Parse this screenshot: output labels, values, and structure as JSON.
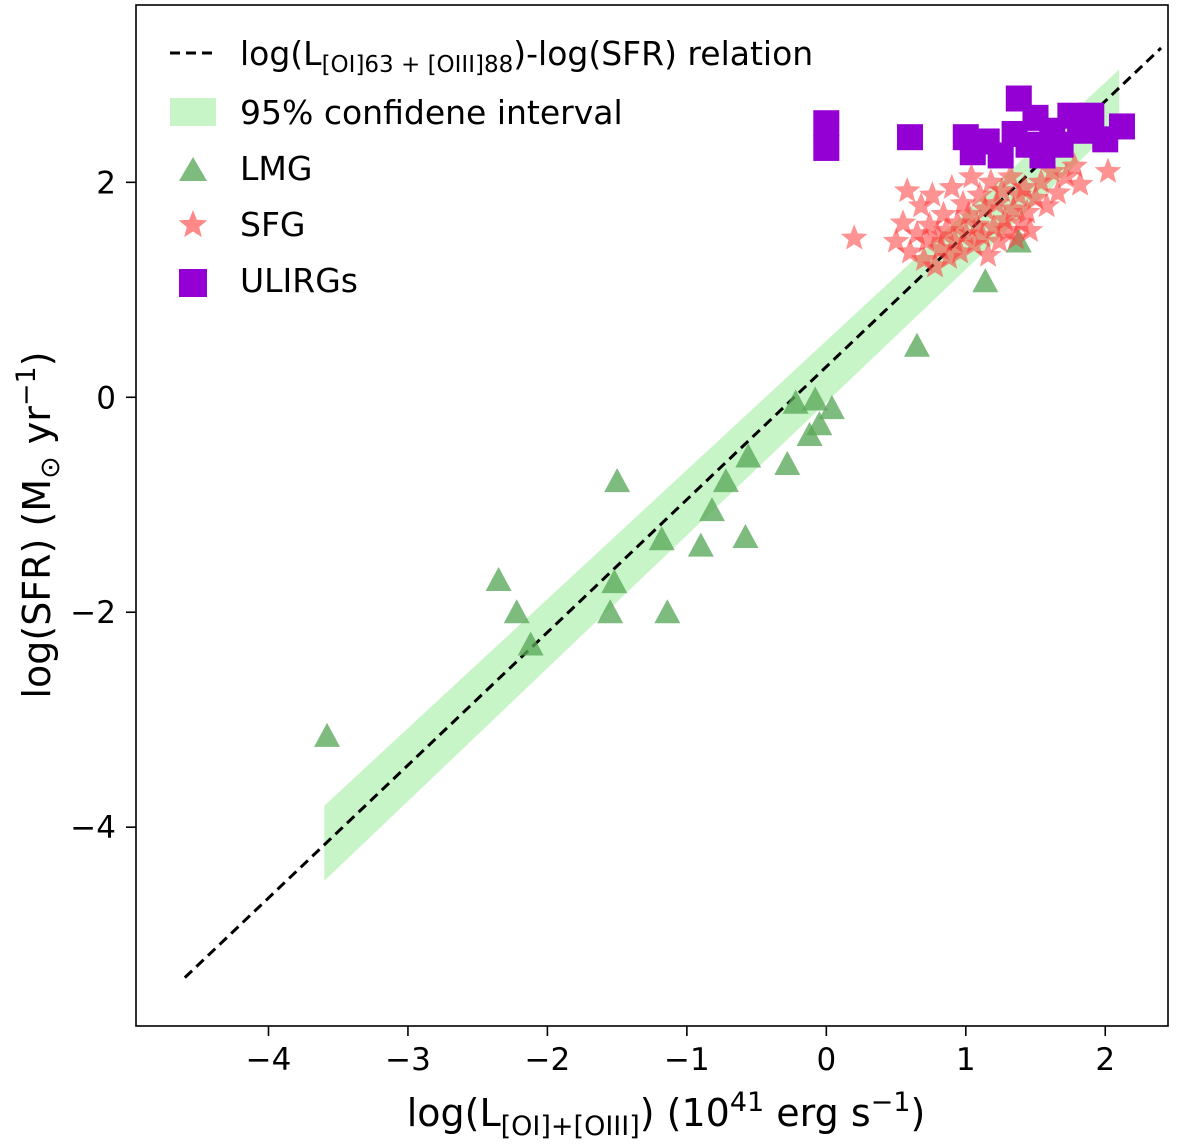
{
  "chart_data": {
    "type": "scatter",
    "title": "",
    "xlabel": {
      "main": "log(L",
      "sub": "[OI]+[OIII]",
      "rest": ") (10",
      "sup": "41",
      "units": " erg s",
      "units_sup": "−1",
      "close": ")"
    },
    "ylabel": {
      "main": "log(SFR) (M",
      "sub": "⊙",
      "units": " yr",
      "units_sup": "−1",
      "close": ")"
    },
    "xlim": [
      -4.95,
      2.45
    ],
    "ylim": [
      -5.85,
      3.65
    ],
    "xticks": [
      {
        "value": -4,
        "label": "−4"
      },
      {
        "value": -3,
        "label": "−3"
      },
      {
        "value": -2,
        "label": "−2"
      },
      {
        "value": -1,
        "label": "−1"
      },
      {
        "value": 0,
        "label": "0"
      },
      {
        "value": 1,
        "label": "1"
      },
      {
        "value": 2,
        "label": "2"
      }
    ],
    "yticks": [
      {
        "value": 2,
        "label": "2"
      },
      {
        "value": 0,
        "label": "0"
      },
      {
        "value": -2,
        "label": "−2"
      },
      {
        "value": -4,
        "label": "−4"
      }
    ],
    "grid": false,
    "legend_position": "top-left",
    "relation": {
      "legend_main": "log(L",
      "legend_sub": "[OI]63 + [OIII]88",
      "legend_rest": ")-log(SFR) relation",
      "x": [
        -4.6,
        2.4
      ],
      "y": [
        -5.4,
        3.25
      ],
      "color": "#000000"
    },
    "confidence_band": {
      "legend": "95% confidene interval",
      "x": [
        -3.6,
        2.1
      ],
      "upper": [
        -3.8,
        3.05
      ],
      "lower": [
        -4.5,
        2.55
      ],
      "color": "#c8f5c8"
    },
    "series": [
      {
        "name": "LMG",
        "marker": "triangle",
        "color": "#5aa85a",
        "points": [
          {
            "x": -3.58,
            "y": -3.15
          },
          {
            "x": -2.35,
            "y": -1.7
          },
          {
            "x": -2.22,
            "y": -2.0
          },
          {
            "x": -2.12,
            "y": -2.3
          },
          {
            "x": -1.55,
            "y": -2.0
          },
          {
            "x": -1.52,
            "y": -1.72
          },
          {
            "x": -1.5,
            "y": -0.78
          },
          {
            "x": -1.14,
            "y": -2.0
          },
          {
            "x": -1.18,
            "y": -1.32
          },
          {
            "x": -0.9,
            "y": -1.38
          },
          {
            "x": -0.82,
            "y": -1.05
          },
          {
            "x": -0.72,
            "y": -0.78
          },
          {
            "x": -0.56,
            "y": -0.55
          },
          {
            "x": -0.58,
            "y": -1.3
          },
          {
            "x": -0.28,
            "y": -0.62
          },
          {
            "x": -0.22,
            "y": -0.05
          },
          {
            "x": -0.12,
            "y": -0.35
          },
          {
            "x": -0.08,
            "y": -0.02
          },
          {
            "x": -0.05,
            "y": -0.25
          },
          {
            "x": 0.04,
            "y": -0.1
          },
          {
            "x": 0.65,
            "y": 0.48
          },
          {
            "x": 1.14,
            "y": 1.08
          },
          {
            "x": 1.38,
            "y": 1.45
          }
        ]
      },
      {
        "name": "SFG",
        "marker": "star",
        "color": "#ff3b3b",
        "points": [
          {
            "x": 0.2,
            "y": 1.48
          },
          {
            "x": 0.5,
            "y": 1.45
          },
          {
            "x": 0.55,
            "y": 1.62
          },
          {
            "x": 0.58,
            "y": 1.92
          },
          {
            "x": 0.6,
            "y": 1.35
          },
          {
            "x": 0.65,
            "y": 1.52
          },
          {
            "x": 0.68,
            "y": 1.78
          },
          {
            "x": 0.7,
            "y": 1.28
          },
          {
            "x": 0.72,
            "y": 1.45
          },
          {
            "x": 0.74,
            "y": 1.6
          },
          {
            "x": 0.76,
            "y": 1.88
          },
          {
            "x": 0.78,
            "y": 1.22
          },
          {
            "x": 0.8,
            "y": 1.5
          },
          {
            "x": 0.82,
            "y": 1.38
          },
          {
            "x": 0.84,
            "y": 1.7
          },
          {
            "x": 0.86,
            "y": 1.55
          },
          {
            "x": 0.88,
            "y": 1.3
          },
          {
            "x": 0.9,
            "y": 1.95
          },
          {
            "x": 0.92,
            "y": 1.45
          },
          {
            "x": 0.94,
            "y": 1.62
          },
          {
            "x": 0.96,
            "y": 1.35
          },
          {
            "x": 0.98,
            "y": 1.8
          },
          {
            "x": 1.0,
            "y": 1.52
          },
          {
            "x": 1.02,
            "y": 1.7
          },
          {
            "x": 1.04,
            "y": 2.05
          },
          {
            "x": 1.06,
            "y": 1.42
          },
          {
            "x": 1.08,
            "y": 1.6
          },
          {
            "x": 1.1,
            "y": 1.88
          },
          {
            "x": 1.12,
            "y": 1.5
          },
          {
            "x": 1.14,
            "y": 1.75
          },
          {
            "x": 1.16,
            "y": 1.32
          },
          {
            "x": 1.18,
            "y": 2.0
          },
          {
            "x": 1.2,
            "y": 1.58
          },
          {
            "x": 1.22,
            "y": 1.8
          },
          {
            "x": 1.24,
            "y": 1.45
          },
          {
            "x": 1.26,
            "y": 1.92
          },
          {
            "x": 1.28,
            "y": 1.65
          },
          {
            "x": 1.3,
            "y": 1.55
          },
          {
            "x": 1.32,
            "y": 2.05
          },
          {
            "x": 1.34,
            "y": 1.75
          },
          {
            "x": 1.36,
            "y": 1.48
          },
          {
            "x": 1.38,
            "y": 1.88
          },
          {
            "x": 1.4,
            "y": 1.62
          },
          {
            "x": 1.42,
            "y": 1.95
          },
          {
            "x": 1.44,
            "y": 1.72
          },
          {
            "x": 1.46,
            "y": 1.55
          },
          {
            "x": 1.5,
            "y": 1.85
          },
          {
            "x": 1.54,
            "y": 2.0
          },
          {
            "x": 1.58,
            "y": 1.78
          },
          {
            "x": 1.62,
            "y": 2.1
          },
          {
            "x": 1.66,
            "y": 1.9
          },
          {
            "x": 1.72,
            "y": 2.05
          },
          {
            "x": 1.78,
            "y": 2.15
          },
          {
            "x": 1.82,
            "y": 1.98
          },
          {
            "x": 2.02,
            "y": 2.1
          }
        ]
      },
      {
        "name": "ULIRGs",
        "marker": "square",
        "color": "#9400d3",
        "points": [
          {
            "x": 0.0,
            "y": 2.55
          },
          {
            "x": 0.0,
            "y": 2.32
          },
          {
            "x": 0.6,
            "y": 2.42
          },
          {
            "x": 1.0,
            "y": 2.42
          },
          {
            "x": 1.05,
            "y": 2.28
          },
          {
            "x": 1.15,
            "y": 2.38
          },
          {
            "x": 1.25,
            "y": 2.25
          },
          {
            "x": 1.35,
            "y": 2.45
          },
          {
            "x": 1.38,
            "y": 2.78
          },
          {
            "x": 1.45,
            "y": 2.35
          },
          {
            "x": 1.5,
            "y": 2.6
          },
          {
            "x": 1.55,
            "y": 2.25
          },
          {
            "x": 1.62,
            "y": 2.48
          },
          {
            "x": 1.68,
            "y": 2.35
          },
          {
            "x": 1.75,
            "y": 2.62
          },
          {
            "x": 1.82,
            "y": 2.48
          },
          {
            "x": 1.9,
            "y": 2.62
          },
          {
            "x": 2.0,
            "y": 2.4
          },
          {
            "x": 2.12,
            "y": 2.52
          }
        ]
      }
    ]
  }
}
